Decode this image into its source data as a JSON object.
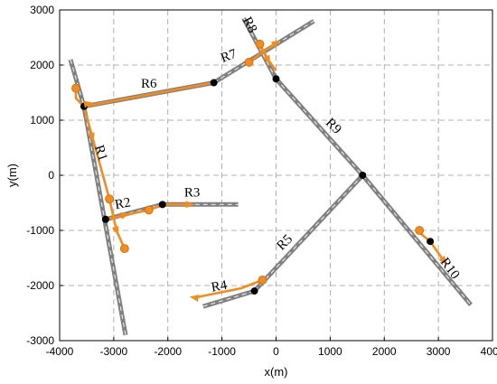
{
  "chart_data": {
    "type": "line",
    "title": "",
    "xlabel": "x(m)",
    "ylabel": "y(m)",
    "xlim": [
      -4000,
      4000
    ],
    "ylim": [
      -3000,
      3000
    ],
    "xticks": [
      -4000,
      -3000,
      -2000,
      -1000,
      0,
      1000,
      2000,
      3000,
      4000
    ],
    "yticks": [
      -3000,
      -2000,
      -1000,
      0,
      1000,
      2000,
      3000
    ],
    "grid": true,
    "colors": {
      "road": "#808080",
      "center_dash": "#e6e6e6",
      "path": "#f28c1e",
      "node": "#000000"
    },
    "roads": [
      {
        "name": "R1",
        "points": [
          [
            -3800,
            2100
          ],
          [
            -3550,
            1250
          ],
          [
            -2780,
            -2900
          ]
        ]
      },
      {
        "name": "R2",
        "points": [
          [
            -3150,
            -800
          ],
          [
            -2100,
            -530
          ]
        ]
      },
      {
        "name": "R3",
        "points": [
          [
            -2100,
            -530
          ],
          [
            -700,
            -530
          ]
        ]
      },
      {
        "name": "R4",
        "points": [
          [
            -1350,
            -2380
          ],
          [
            -400,
            -2100
          ]
        ]
      },
      {
        "name": "R5",
        "points": [
          [
            -400,
            -2100
          ],
          [
            1600,
            0
          ]
        ]
      },
      {
        "name": "R6",
        "points": [
          [
            -3550,
            1250
          ],
          [
            -1150,
            1680
          ]
        ]
      },
      {
        "name": "R7",
        "points": [
          [
            -1150,
            1680
          ],
          [
            700,
            2800
          ]
        ]
      },
      {
        "name": "R8",
        "points": [
          [
            -600,
            2850
          ],
          [
            0,
            1750
          ]
        ]
      },
      {
        "name": "R9",
        "points": [
          [
            0,
            1750
          ],
          [
            1600,
            0
          ]
        ]
      },
      {
        "name": "R10",
        "points": [
          [
            1600,
            0
          ],
          [
            3600,
            -2350
          ]
        ]
      }
    ],
    "road_labels": [
      {
        "text": "R1",
        "x": -3250,
        "y": 400,
        "angle": 72
      },
      {
        "text": "R2",
        "x": -2830,
        "y": -530,
        "angle": -10
      },
      {
        "text": "R3",
        "x": -1550,
        "y": -330,
        "angle": 0
      },
      {
        "text": "R4",
        "x": -1050,
        "y": -2030,
        "angle": -10
      },
      {
        "text": "R5",
        "x": 170,
        "y": -1230,
        "angle": -45
      },
      {
        "text": "R6",
        "x": -2350,
        "y": 1650,
        "angle": 0
      },
      {
        "text": "R7",
        "x": -870,
        "y": 2150,
        "angle": -20
      },
      {
        "text": "R8",
        "x": -500,
        "y": 2720,
        "angle": 62
      },
      {
        "text": "R9",
        "x": 1050,
        "y": 880,
        "angle": 45
      },
      {
        "text": "R10",
        "x": 3200,
        "y": -1700,
        "angle": 53
      }
    ],
    "intersections": [
      [
        -3550,
        1250
      ],
      [
        -3150,
        -800
      ],
      [
        -2100,
        -530
      ],
      [
        -400,
        -2100
      ],
      [
        -1150,
        1680
      ],
      [
        0,
        1750
      ],
      [
        1600,
        0
      ],
      [
        2850,
        -1200
      ]
    ],
    "orange_path": [
      [
        [
          -3700,
          1580
        ],
        [
          -3700,
          1400
        ],
        [
          -3550,
          1250
        ]
      ],
      [
        [
          -3550,
          1250
        ],
        [
          -1150,
          1680
        ]
      ],
      [
        [
          -3550,
          1250
        ],
        [
          -3080,
          -430
        ],
        [
          -2950,
          -1000
        ],
        [
          -2800,
          -1330
        ]
      ],
      [
        [
          -3150,
          -800
        ],
        [
          -2350,
          -630
        ],
        [
          -2100,
          -530
        ],
        [
          -1600,
          -530
        ]
      ],
      [
        [
          -1500,
          -2220
        ],
        [
          -650,
          -2050
        ],
        [
          -250,
          -1900
        ]
      ],
      [
        [
          -500,
          2050
        ],
        [
          -300,
          2200
        ],
        [
          0,
          2400
        ]
      ],
      [
        [
          -300,
          2380
        ],
        [
          -150,
          2100
        ],
        [
          0,
          1900
        ]
      ],
      [
        [
          2600,
          -1000
        ],
        [
          2850,
          -1200
        ],
        [
          3100,
          -1550
        ]
      ]
    ],
    "orange_markers": [
      [
        -3700,
        1580
      ],
      [
        -3080,
        -430
      ],
      [
        -2800,
        -1330
      ],
      [
        -2350,
        -630
      ],
      [
        -250,
        -1900
      ],
      [
        -500,
        2050
      ],
      [
        -300,
        2380
      ],
      [
        2650,
        -1000
      ]
    ],
    "orange_arrows": [
      {
        "x": -3480,
        "y": 1300,
        "angle": -10
      },
      {
        "x": -3400,
        "y": 700,
        "angle": 75
      },
      {
        "x": -2800,
        "y": -720,
        "angle": -14
      },
      {
        "x": -2950,
        "y": -1000,
        "angle": 70
      },
      {
        "x": -1600,
        "y": -530,
        "angle": 0
      },
      {
        "x": -1500,
        "y": -2220,
        "angle": 190
      },
      {
        "x": 0,
        "y": 2400,
        "angle": -30
      },
      {
        "x": -150,
        "y": 2100,
        "angle": 65
      },
      {
        "x": 3100,
        "y": -1550,
        "angle": 55
      }
    ]
  }
}
